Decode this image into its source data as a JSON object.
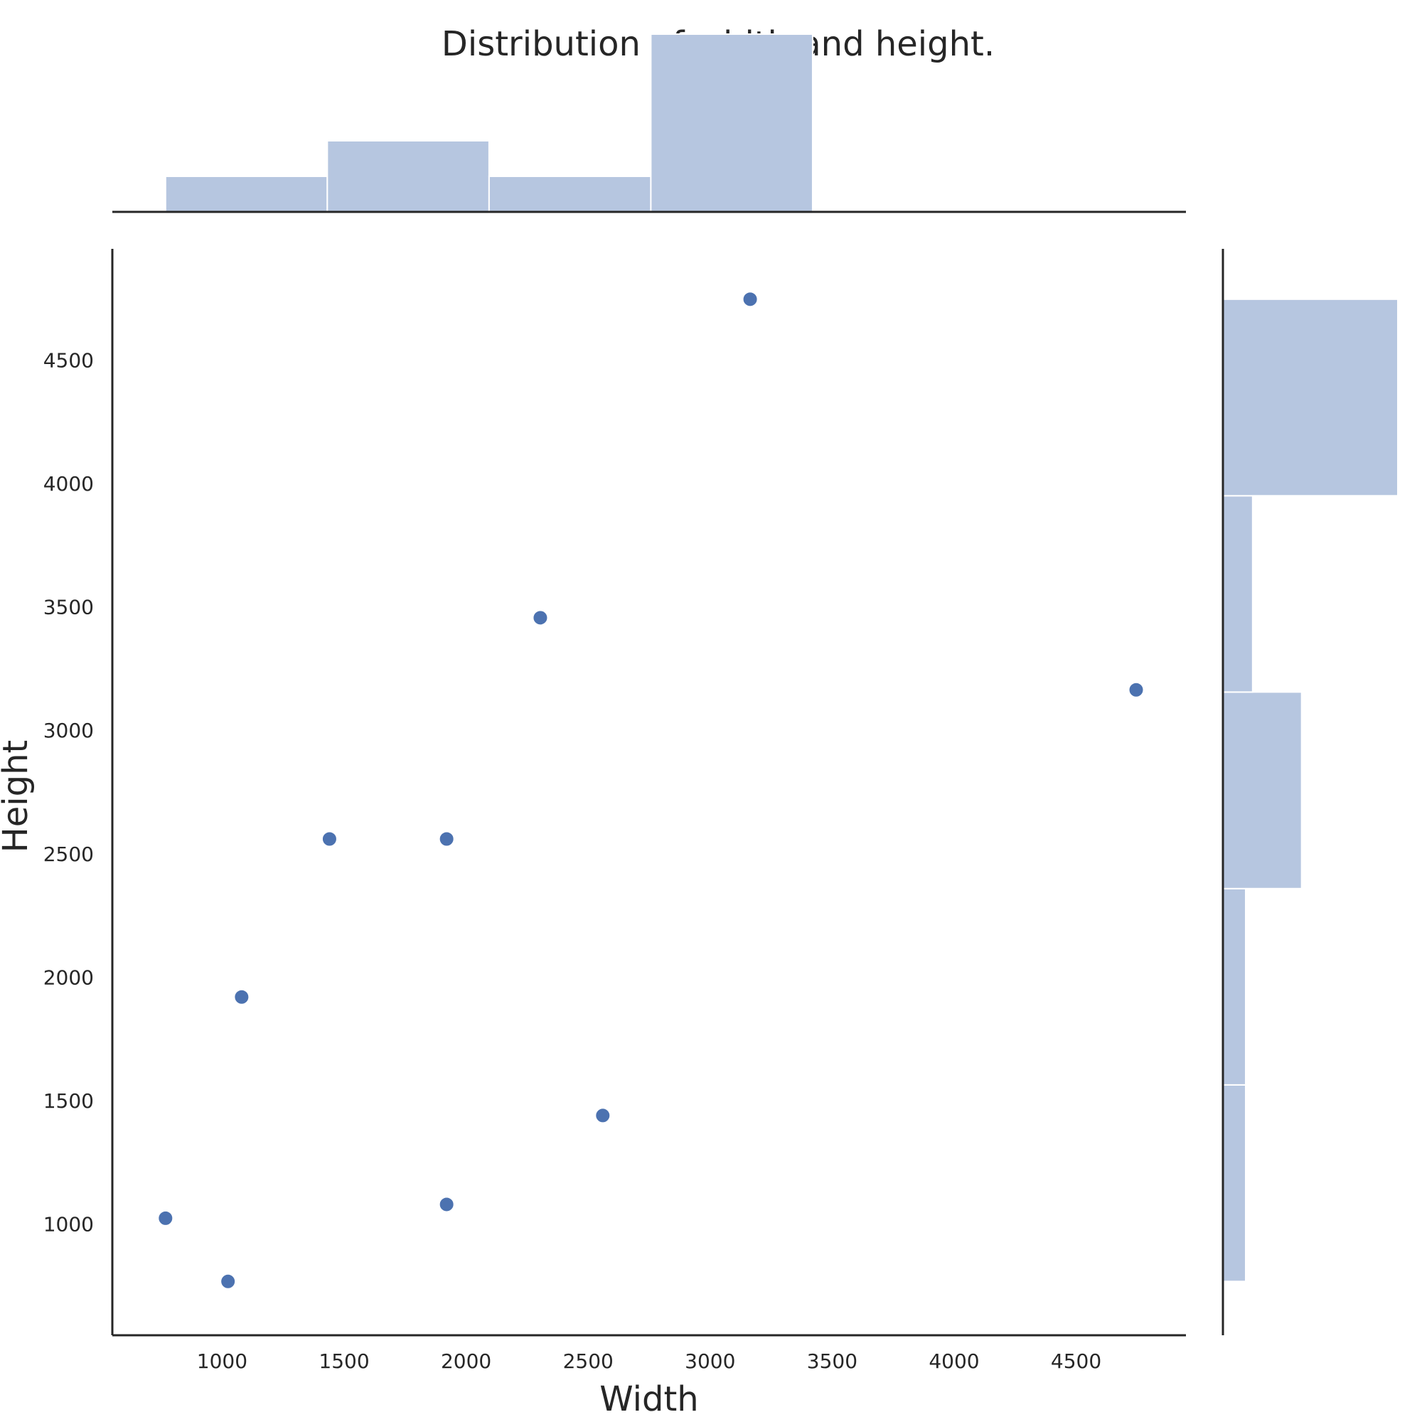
{
  "colors": {
    "point": "#4c72b0",
    "bar": "#b6c6e0",
    "bar_edge": "#ffffff",
    "spine": "#262626",
    "text": "#262626"
  },
  "chart_data": {
    "type": "scatter",
    "title": "Distribution of width and height.",
    "xlabel": "Width",
    "ylabel": "Height",
    "xlim": [
      550,
      4950
    ],
    "ylim": [
      550,
      4950
    ],
    "x_ticks": [
      1000,
      1500,
      2000,
      2500,
      3000,
      3500,
      4000,
      4500
    ],
    "y_ticks": [
      1000,
      1500,
      2000,
      2500,
      3000,
      3500,
      4000,
      4500
    ],
    "grid": false,
    "points": [
      {
        "x": 3164,
        "y": 4746
      },
      {
        "x": 2304,
        "y": 3456
      },
      {
        "x": 4746,
        "y": 3164
      },
      {
        "x": 1440,
        "y": 2560
      },
      {
        "x": 1920,
        "y": 2560
      },
      {
        "x": 1080,
        "y": 1920
      },
      {
        "x": 2560,
        "y": 1440
      },
      {
        "x": 1920,
        "y": 1080
      },
      {
        "x": 768,
        "y": 1024
      },
      {
        "x": 1024,
        "y": 768
      }
    ],
    "marginal_x": {
      "type": "histogram",
      "bins": [
        {
          "start": 768,
          "end": 1431,
          "count": 1
        },
        {
          "start": 1431,
          "end": 2094,
          "count": 2
        },
        {
          "start": 2094,
          "end": 2757,
          "count": 1
        },
        {
          "start": 2757,
          "end": 3420,
          "count": 5
        },
        {
          "start": 3420,
          "end": 4083,
          "count": 0
        },
        {
          "start": 4083,
          "end": 4746,
          "count": 0.05
        }
      ],
      "max_count": 5
    },
    "marginal_y": {
      "type": "histogram",
      "bins": [
        {
          "start": 768,
          "end": 1564,
          "count": 0.13
        },
        {
          "start": 1564,
          "end": 2359,
          "count": 0.13
        },
        {
          "start": 2359,
          "end": 3155,
          "count": 0.45
        },
        {
          "start": 3155,
          "end": 3950,
          "count": 0.17
        },
        {
          "start": 3950,
          "end": 4746,
          "count": 1
        }
      ],
      "max_count": 1
    }
  }
}
